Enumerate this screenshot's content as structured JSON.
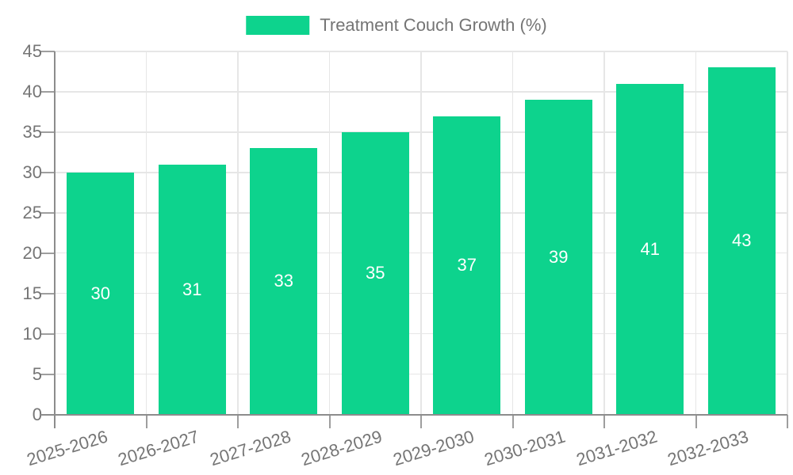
{
  "legend": {
    "label": "Treatment Couch Growth (%)"
  },
  "colors": {
    "bar": "#0dd38d",
    "bar_label": "#ffffff",
    "axis_line": "#8c8c8c",
    "tick": "#9e9e9e",
    "grid": "#e6e6e6",
    "text": "#757575",
    "background": "#ffffff"
  },
  "chart_data": {
    "type": "bar",
    "title": "Treatment Couch Growth (%)",
    "categories": [
      "2025-2026",
      "2026-2027",
      "2027-2028",
      "2028-2029",
      "2029-2030",
      "2030-2031",
      "2031-2032",
      "2032-2033"
    ],
    "values": [
      30,
      31,
      33,
      35,
      37,
      39,
      41,
      43
    ],
    "xlabel": "",
    "ylabel": "",
    "ylim": [
      0,
      45
    ],
    "yticks": [
      0,
      5,
      10,
      15,
      20,
      25,
      30,
      35,
      40,
      45
    ],
    "grid": true,
    "legend_position": "top",
    "bar_value_labels": "inside-center",
    "xtick_rotation_deg": -17
  }
}
